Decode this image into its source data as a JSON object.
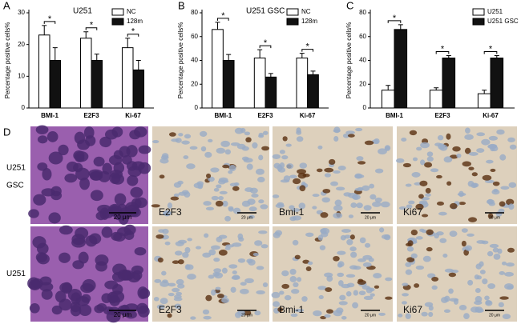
{
  "chart_data": [
    {
      "type": "bar",
      "panel": "A",
      "title": "U251",
      "ylabel": "Percentage positive cells%",
      "categories": [
        "BMI-1",
        "E2F3",
        "Ki-67"
      ],
      "ylim": [
        0,
        30
      ],
      "yticks": [
        0,
        10,
        20,
        30
      ],
      "series": [
        {
          "name": "NC",
          "color": "#ffffff",
          "values": [
            23,
            22,
            19
          ],
          "errors": [
            3,
            2,
            3
          ]
        },
        {
          "name": "128m",
          "color": "#111111",
          "values": [
            15,
            15,
            12
          ],
          "errors": [
            4,
            2,
            3
          ]
        }
      ],
      "annotations": [
        "*",
        "*",
        "*"
      ]
    },
    {
      "type": "bar",
      "panel": "B",
      "title": "U251 GSC",
      "ylabel": "Percentage positive cells%",
      "categories": [
        "BMI-1",
        "E2F3",
        "Ki-67"
      ],
      "ylim": [
        0,
        80
      ],
      "yticks": [
        0,
        20,
        40,
        60,
        80
      ],
      "series": [
        {
          "name": "NC",
          "color": "#ffffff",
          "values": [
            66,
            42,
            42
          ],
          "errors": [
            6,
            7,
            4
          ]
        },
        {
          "name": "128m",
          "color": "#111111",
          "values": [
            40,
            26,
            28
          ],
          "errors": [
            5,
            3,
            3
          ]
        }
      ],
      "annotations": [
        "*",
        "*",
        "*"
      ]
    },
    {
      "type": "bar",
      "panel": "C",
      "ylabel": "Percentage positive cells%",
      "categories": [
        "BMI-1",
        "E2F3",
        "Ki-67"
      ],
      "ylim": [
        0,
        80
      ],
      "yticks": [
        0,
        20,
        40,
        60,
        80
      ],
      "series": [
        {
          "name": "U251",
          "color": "#ffffff",
          "values": [
            15,
            15,
            12
          ],
          "errors": [
            4,
            2,
            3
          ]
        },
        {
          "name": "U251 GSC",
          "color": "#111111",
          "values": [
            66,
            42,
            42
          ],
          "errors": [
            4,
            2,
            2
          ]
        }
      ],
      "annotations": [
        "*",
        "*",
        "*"
      ]
    }
  ],
  "images": {
    "panel": "D",
    "rows": [
      {
        "label": [
          "U251",
          "GSC"
        ],
        "cells": [
          {
            "label": null,
            "scale": "20 μm"
          },
          {
            "label": "E2F3",
            "scale": "20 μm"
          },
          {
            "label": "Bmi-1",
            "scale": "20 μm"
          },
          {
            "label": "Ki67",
            "scale": "20 μm"
          }
        ]
      },
      {
        "label": [
          "U251"
        ],
        "cells": [
          {
            "label": null,
            "scale": "20 μm"
          },
          {
            "label": "E2F3",
            "scale": "20 μm"
          },
          {
            "label": "Bmi-1",
            "scale": "20 μm"
          },
          {
            "label": "Ki67",
            "scale": "20 μm"
          }
        ]
      }
    ]
  }
}
